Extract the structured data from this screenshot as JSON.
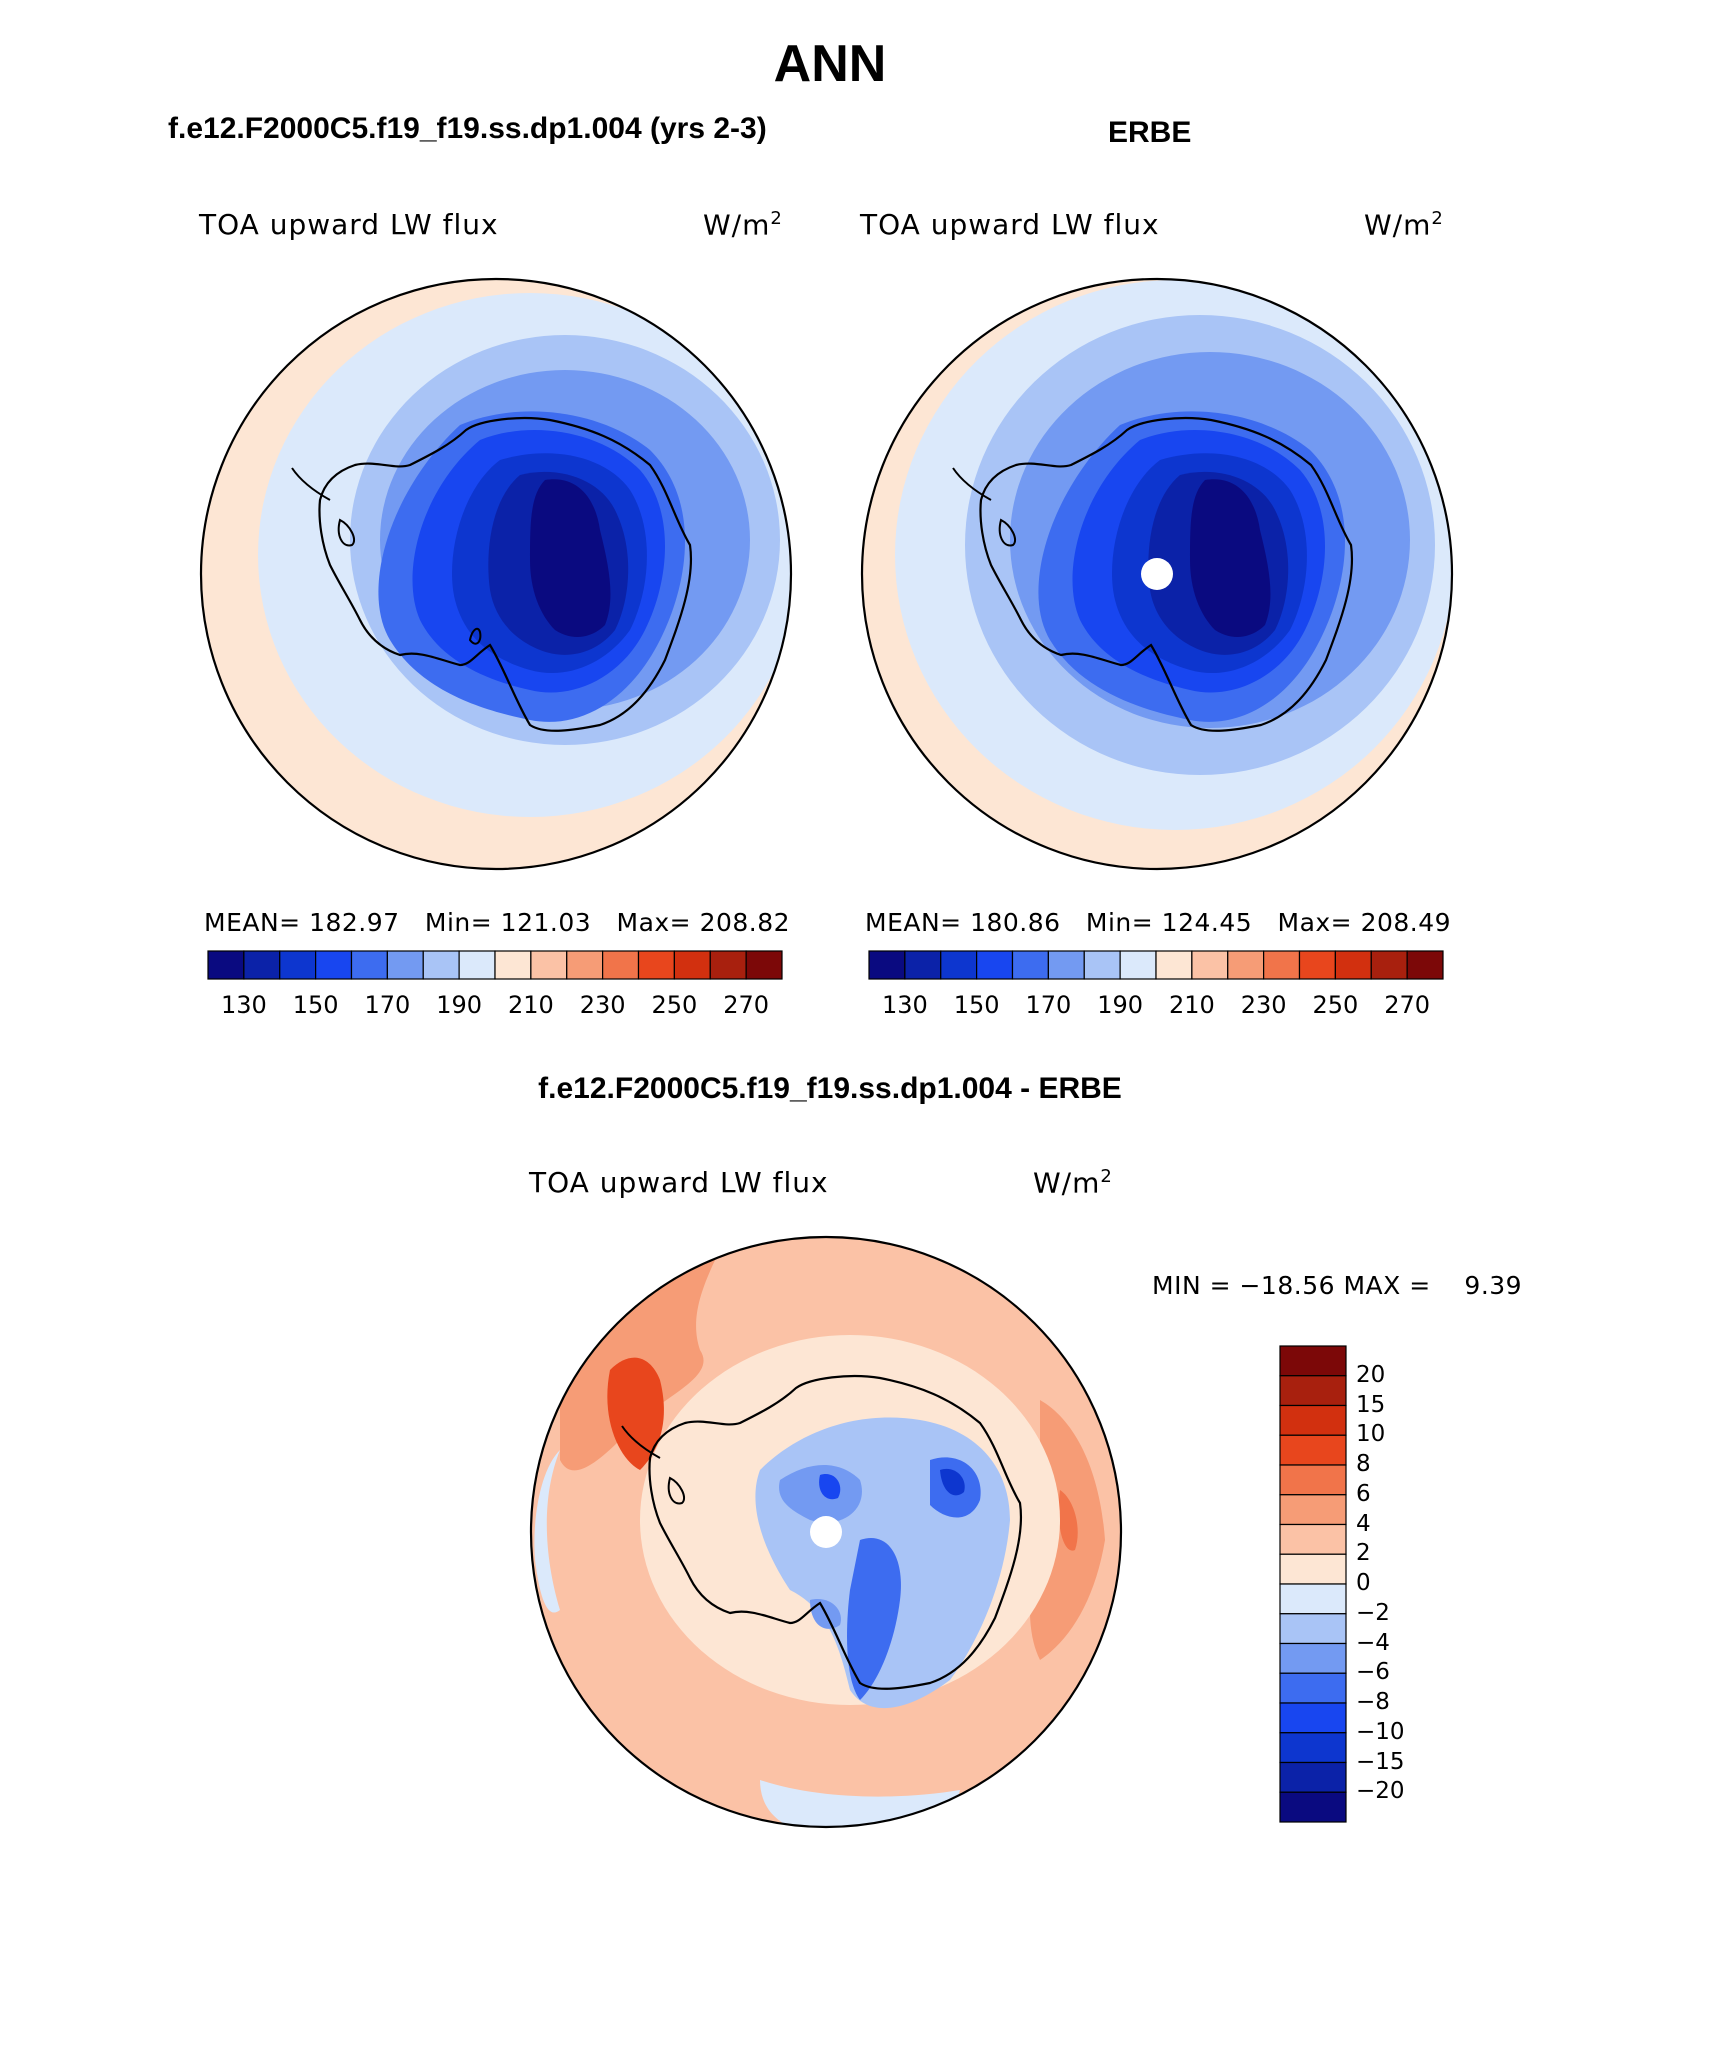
{
  "header": {
    "title": "ANN",
    "left_case": "f.e12.F2000C5.f19_f19.ss.dp1.004 (yrs 2-3)",
    "right_case": "ERBE",
    "diff_title": "f.e12.F2000C5.f19_f19.ss.dp1.004 - ERBE"
  },
  "panels": {
    "left": {
      "variable": "TOA upward LW flux",
      "unit": "W/m",
      "unit_exp": "2",
      "mean_label": "MEAN=",
      "mean": "182.97",
      "min_label": "Min=",
      "min": "121.03",
      "max_label": "Max=",
      "max": "208.82"
    },
    "right": {
      "variable": "TOA upward LW flux",
      "unit": "W/m",
      "unit_exp": "2",
      "mean_label": "MEAN=",
      "mean": "180.86",
      "min_label": "Min=",
      "min": "124.45",
      "max_label": "Max=",
      "max": "208.49"
    },
    "diff": {
      "variable": "TOA upward LW flux",
      "unit": "W/m",
      "unit_exp": "2",
      "minmax": "MIN = −18.56 MAX =    9.39"
    }
  },
  "colorbar_main": {
    "ticks": [
      "130",
      "150",
      "170",
      "190",
      "210",
      "230",
      "250",
      "270"
    ],
    "colors": [
      "#0a0a80",
      "#0b22a8",
      "#0d36cf",
      "#1846f0",
      "#3d6cf0",
      "#739af2",
      "#a9c4f6",
      "#dbe9fb",
      "#fde6d4",
      "#fbc2a6",
      "#f69c76",
      "#f1744a",
      "#e8461d",
      "#d2300f",
      "#a8200e",
      "#7c0808"
    ]
  },
  "colorbar_diff": {
    "labels": [
      "20",
      "15",
      "10",
      "8",
      "6",
      "4",
      "2",
      "0",
      "−2",
      "−4",
      "−6",
      "−8",
      "−10",
      "−15",
      "−20"
    ],
    "colors": [
      "#7c0808",
      "#a8200e",
      "#d2300f",
      "#e8461d",
      "#f1744a",
      "#f69c76",
      "#fbc2a6",
      "#fde6d4",
      "#dbe9fb",
      "#a9c4f6",
      "#739af2",
      "#3d6cf0",
      "#1846f0",
      "#0d36cf",
      "#0b22a8",
      "#0a0a80"
    ]
  },
  "chart_data": [
    {
      "type": "heatmap",
      "title": "TOA upward LW flux",
      "case": "f.e12.F2000C5.f19_f19.ss.dp1.004 (yrs 2-3)",
      "units": "W/m2",
      "projection": "south polar stereographic",
      "mean": 182.97,
      "min": 121.03,
      "max": 208.82,
      "levels": [
        130,
        140,
        150,
        160,
        170,
        180,
        190,
        200,
        210,
        220,
        230,
        240,
        250,
        260,
        270
      ]
    },
    {
      "type": "heatmap",
      "title": "TOA upward LW flux",
      "case": "ERBE",
      "units": "W/m2",
      "projection": "south polar stereographic",
      "mean": 180.86,
      "min": 124.45,
      "max": 208.49,
      "levels": [
        130,
        140,
        150,
        160,
        170,
        180,
        190,
        200,
        210,
        220,
        230,
        240,
        250,
        260,
        270
      ]
    },
    {
      "type": "heatmap",
      "title": "TOA upward LW flux",
      "case": "f.e12.F2000C5.f19_f19.ss.dp1.004 - ERBE",
      "units": "W/m2",
      "projection": "south polar stereographic",
      "min": -18.56,
      "max": 9.39,
      "levels": [
        -20,
        -15,
        -10,
        -8,
        -6,
        -4,
        -2,
        0,
        2,
        4,
        6,
        8,
        10,
        15,
        20
      ]
    }
  ]
}
